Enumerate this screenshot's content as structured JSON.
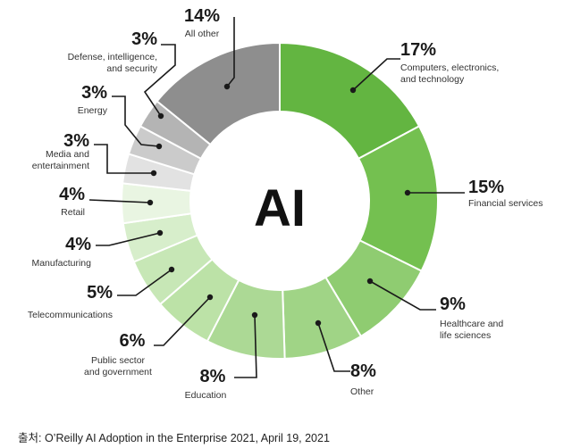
{
  "chart_data": {
    "type": "pie",
    "donut": true,
    "center_label": "AI",
    "categories": [
      "Computers, electronics, and technology",
      "Financial services",
      "Healthcare and life sciences",
      "Other",
      "Education",
      "Public sector and government",
      "Telecommunications",
      "Manufacturing",
      "Retail",
      "Media and entertainment",
      "Energy",
      "Defense, intelligence, and security",
      "All other"
    ],
    "values": [
      17,
      15,
      9,
      8,
      8,
      6,
      5,
      4,
      4,
      3,
      3,
      3,
      14
    ],
    "value_labels": [
      "17%",
      "15%",
      "9%",
      "8%",
      "8%",
      "6%",
      "5%",
      "4%",
      "4%",
      "3%",
      "3%",
      "3%",
      "14%"
    ],
    "label_lines": [
      [
        "Computers, electronics,",
        "and technology"
      ],
      [
        "Financial services"
      ],
      [
        "Healthcare and",
        "life sciences"
      ],
      [
        "Other"
      ],
      [
        "Education"
      ],
      [
        "Public sector",
        "and government"
      ],
      [
        "Telecommunications"
      ],
      [
        "Manufacturing"
      ],
      [
        "Retail"
      ],
      [
        "Media and",
        "entertainment"
      ],
      [
        "Energy"
      ],
      [
        "Defense, intelligence,",
        "and security"
      ],
      [
        "All other"
      ]
    ],
    "colors": [
      "#63b541",
      "#74c050",
      "#8fcc71",
      "#a0d486",
      "#acd995",
      "#bce2a7",
      "#c7e7b6",
      "#d7eecb",
      "#e9f5e2",
      "#e2e2e2",
      "#cbcbcb",
      "#b4b4b4",
      "#8e8e8e"
    ]
  },
  "source": "출처: O’Reilly AI Adoption in the Enterprise 2021, April 19, 2021"
}
